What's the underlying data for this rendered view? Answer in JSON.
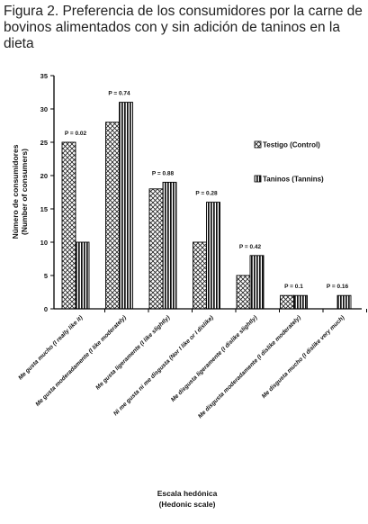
{
  "caption": "Figura 2. Preferencia de los consumidores por la carne de bovinos alimentados con y sin adición de taninos en la dieta",
  "chart_data": {
    "type": "bar",
    "title": "",
    "xlabel": "Escala hedónica",
    "xlabel_en": "(Hedonic scale)",
    "ylabel": "Número de consumidores",
    "ylabel_en": "(Number of consumers)",
    "ylim": [
      0,
      35
    ],
    "yticks": [
      0,
      5,
      10,
      15,
      20,
      25,
      30,
      35
    ],
    "grid": false,
    "legend_position": "right",
    "categories": [
      "Me gusta mucho (I really like it)",
      "Me gusta moderadamente (I like moderately)",
      "Me gusta ligeramente (I like slightly)",
      "Ni me gusta ni me disgusta (Nor I like or I dislike)",
      "Me disgusta ligeramente (I dislike slightly)",
      "Me disgusta moderadamente (I dislike moderately)",
      "Me disgusta mucho (I dislike very much)"
    ],
    "series": [
      {
        "name": "Testigo (Control)",
        "pattern": "crosshatch",
        "values": [
          25,
          28,
          18,
          10,
          5,
          2,
          0
        ]
      },
      {
        "name": "Taninos (Tannins)",
        "pattern": "vertical-stripes",
        "values": [
          10,
          31,
          19,
          16,
          8,
          2,
          2
        ]
      }
    ],
    "annotations": [
      "P = 0.02",
      "P = 0.74",
      "P = 0.88",
      "P = 0.28",
      "P = 0.42",
      "P = 0.1",
      "P = 0.16"
    ]
  }
}
